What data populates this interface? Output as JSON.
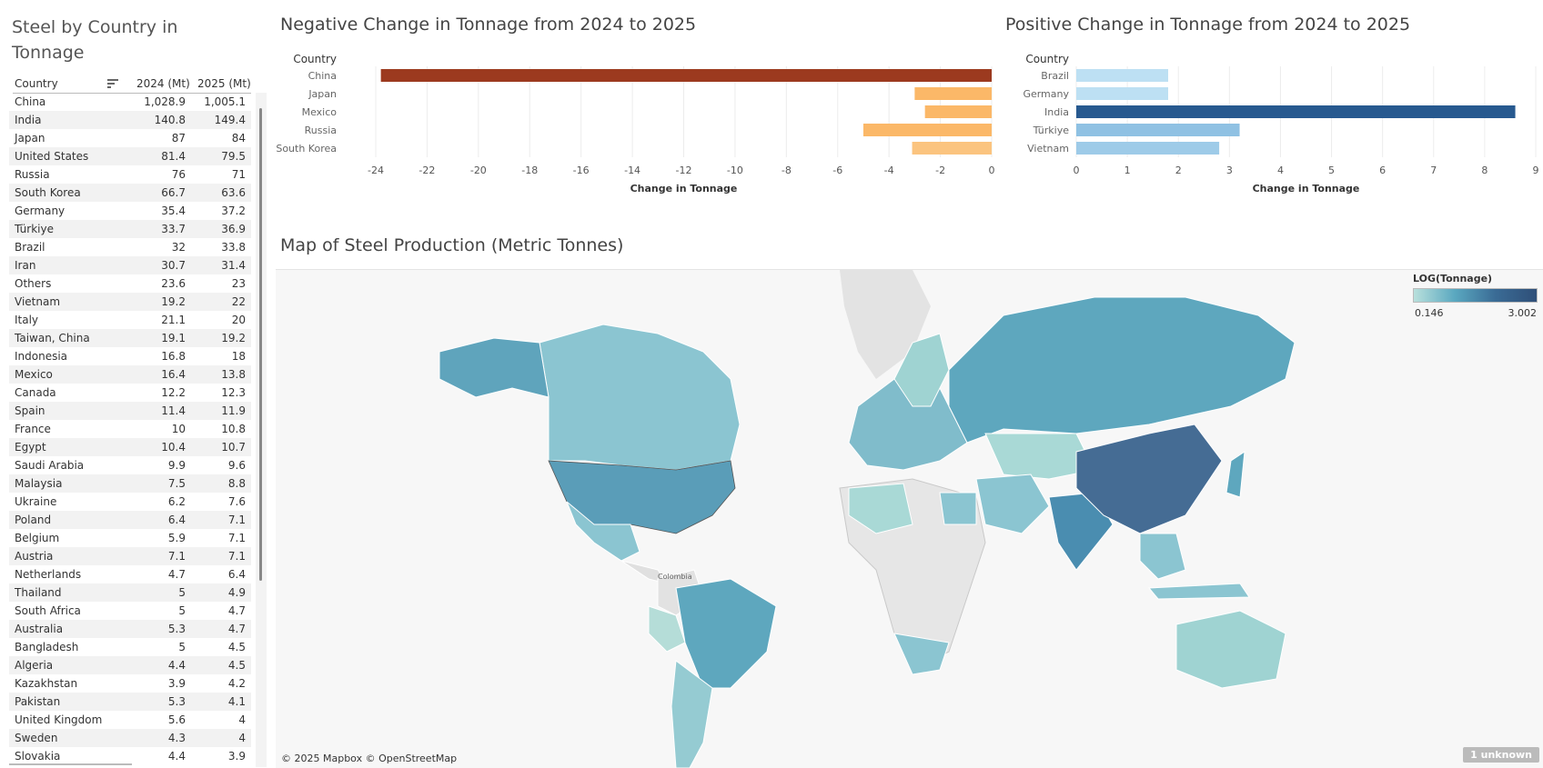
{
  "table": {
    "title": "Steel by Country in Tonnage",
    "headers": {
      "country": "Country",
      "y2024": "2024 (Mt)",
      "y2025": "2025 (Mt)"
    },
    "rows": [
      [
        "China",
        "1,028.9",
        "1,005.1"
      ],
      [
        "India",
        "140.8",
        "149.4"
      ],
      [
        "Japan",
        "87",
        "84"
      ],
      [
        "United States",
        "81.4",
        "79.5"
      ],
      [
        "Russia",
        "76",
        "71"
      ],
      [
        "South Korea",
        "66.7",
        "63.6"
      ],
      [
        "Germany",
        "35.4",
        "37.2"
      ],
      [
        "Türkiye",
        "33.7",
        "36.9"
      ],
      [
        "Brazil",
        "32",
        "33.8"
      ],
      [
        "Iran",
        "30.7",
        "31.4"
      ],
      [
        "Others",
        "23.6",
        "23"
      ],
      [
        "Vietnam",
        "19.2",
        "22"
      ],
      [
        "Italy",
        "21.1",
        "20"
      ],
      [
        "Taiwan, China",
        "19.1",
        "19.2"
      ],
      [
        "Indonesia",
        "16.8",
        "18"
      ],
      [
        "Mexico",
        "16.4",
        "13.8"
      ],
      [
        "Canada",
        "12.2",
        "12.3"
      ],
      [
        "Spain",
        "11.4",
        "11.9"
      ],
      [
        "France",
        "10",
        "10.8"
      ],
      [
        "Egypt",
        "10.4",
        "10.7"
      ],
      [
        "Saudi Arabia",
        "9.9",
        "9.6"
      ],
      [
        "Malaysia",
        "7.5",
        "8.8"
      ],
      [
        "Ukraine",
        "6.2",
        "7.6"
      ],
      [
        "Poland",
        "6.4",
        "7.1"
      ],
      [
        "Belgium",
        "5.9",
        "7.1"
      ],
      [
        "Austria",
        "7.1",
        "7.1"
      ],
      [
        "Netherlands",
        "4.7",
        "6.4"
      ],
      [
        "Thailand",
        "5",
        "4.9"
      ],
      [
        "South Africa",
        "5",
        "4.7"
      ],
      [
        "Australia",
        "5.3",
        "4.7"
      ],
      [
        "Bangladesh",
        "5",
        "4.5"
      ],
      [
        "Algeria",
        "4.4",
        "4.5"
      ],
      [
        "Kazakhstan",
        "3.9",
        "4.2"
      ],
      [
        "Pakistan",
        "5.3",
        "4.1"
      ],
      [
        "United Kingdom",
        "5.6",
        "4"
      ],
      [
        "Sweden",
        "4.3",
        "4"
      ],
      [
        "Slovakia",
        "4.4",
        "3.9"
      ]
    ]
  },
  "chart_data": [
    {
      "type": "bar",
      "orientation": "horizontal",
      "title": "Negative Change in Tonnage from 2024 to 2025",
      "category_header": "Country",
      "categories": [
        "China",
        "Japan",
        "Mexico",
        "Russia",
        "South Korea"
      ],
      "values": [
        -23.8,
        -3,
        -2.6,
        -5,
        -3.1
      ],
      "colors": [
        "#9c3a1f",
        "#fbb868",
        "#fbb868",
        "#fbb868",
        "#fbc47f"
      ],
      "xlabel": "Change in Tonnage",
      "xlim": [
        -24,
        0
      ],
      "ticks": [
        -24,
        -22,
        -20,
        -18,
        -16,
        -14,
        -12,
        -10,
        -8,
        -6,
        -4,
        -2,
        0
      ],
      "grid": true
    },
    {
      "type": "bar",
      "orientation": "horizontal",
      "title": "Positive Change in Tonnage from 2024 to 2025",
      "category_header": "Country",
      "categories": [
        "Brazil",
        "Germany",
        "India",
        "Türkiye",
        "Vietnam"
      ],
      "values": [
        1.8,
        1.8,
        8.6,
        3.2,
        2.8
      ],
      "colors": [
        "#bde0f3",
        "#bde0f3",
        "#27598f",
        "#8fc1e3",
        "#9ecbe8"
      ],
      "xlabel": "Change in Tonnage",
      "xlim": [
        0,
        9
      ],
      "ticks": [
        0,
        1,
        2,
        3,
        4,
        5,
        6,
        7,
        8,
        9
      ],
      "grid": true
    }
  ],
  "map": {
    "title": "Map of Steel Production (Metric Tonnes)",
    "legend_title": "LOG(Tonnage)",
    "legend_min": "0.146",
    "legend_max": "3.002",
    "credit": "© 2025 Mapbox © OpenStreetMap",
    "unknown_badge": "1 unknown",
    "label_colombia": "Colombia"
  }
}
